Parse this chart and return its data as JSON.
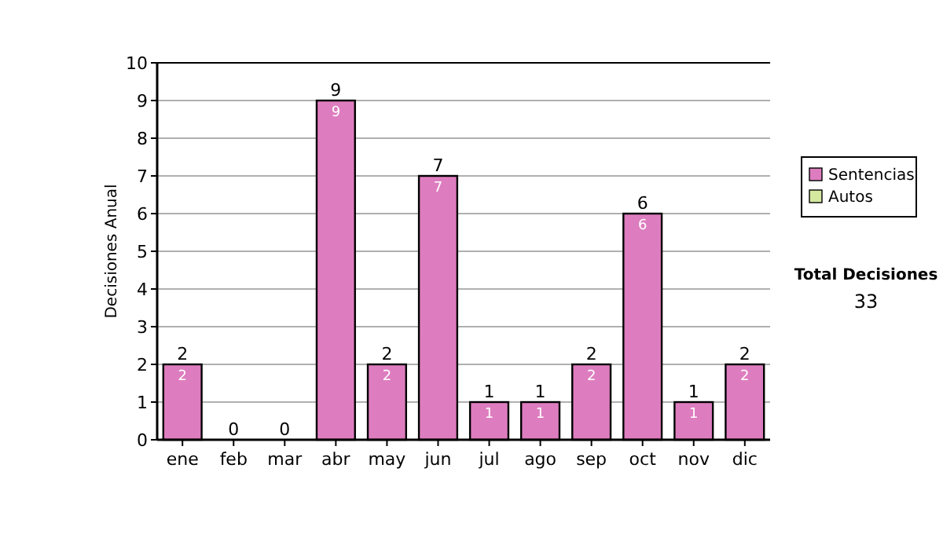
{
  "chart_data": {
    "type": "bar",
    "ylabel": "Decisiones Anual",
    "categories": [
      "ene",
      "feb",
      "mar",
      "abr",
      "may",
      "jun",
      "jul",
      "ago",
      "sep",
      "oct",
      "nov",
      "dic"
    ],
    "series": [
      {
        "name": "Sentencias",
        "color": "#dd7dbf",
        "values": [
          2,
          0,
          0,
          9,
          2,
          7,
          1,
          1,
          2,
          6,
          1,
          2
        ],
        "value_labels": [
          "2",
          null,
          null,
          "9",
          "2",
          "7",
          "1",
          "1",
          "2",
          "6",
          "1",
          "2"
        ]
      },
      {
        "name": "Autos",
        "color": "#d4e8a0",
        "values": [
          0,
          0,
          0,
          0,
          0,
          0,
          0,
          0,
          0,
          0,
          0,
          0
        ]
      }
    ],
    "stacked": true,
    "totals": [
      "2",
      "0",
      "0",
      "9",
      "2",
      "7",
      "1",
      "1",
      "2",
      "6",
      "1",
      "2"
    ],
    "ylim": [
      0,
      10
    ],
    "yticks": [
      0,
      1,
      2,
      3,
      4,
      5,
      6,
      7,
      8,
      9,
      10
    ],
    "grid": "y",
    "legend": "right",
    "annotations": [
      "Total Decisiones",
      "33"
    ]
  }
}
